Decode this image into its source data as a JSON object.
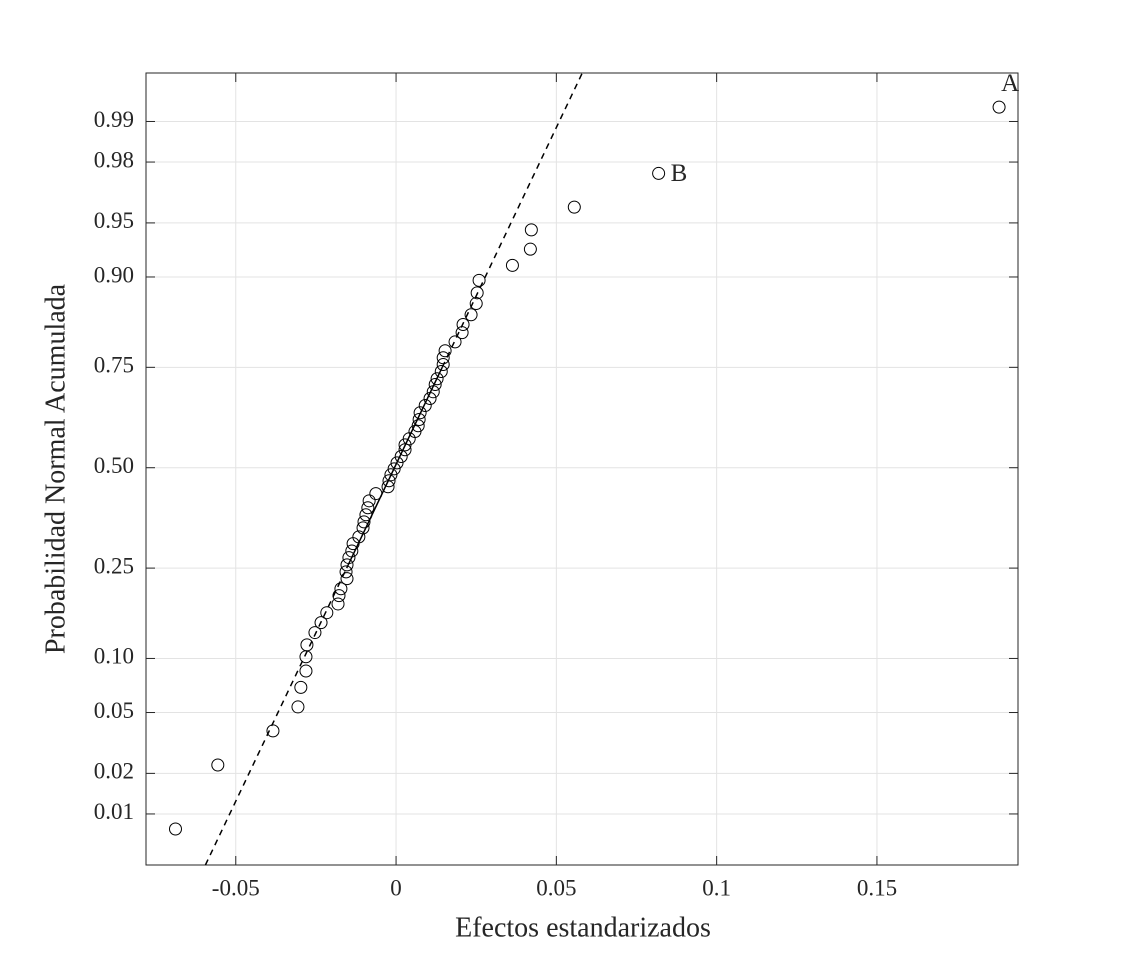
{
  "chart_data": {
    "type": "normal-probability",
    "x_label": "Efectos estandarizados",
    "y_label": "Probabilidad Normal Acumulada",
    "yscale": "probit",
    "grid": true,
    "color": "#000000",
    "xlim": [
      -0.078,
      0.194
    ],
    "ylim": [
      0.0038,
      0.996
    ],
    "xticks": [
      -0.05,
      0,
      0.05,
      0.1,
      0.15
    ],
    "yticks": [
      0.01,
      0.02,
      0.05,
      {
        "value": 0.1,
        "label": "0.10"
      },
      0.25,
      {
        "value": 0.5,
        "label": "0.50"
      },
      0.75,
      {
        "value": 0.9,
        "label": "0.90"
      },
      0.95,
      0.98,
      0.99
    ],
    "x": [
      -0.0688,
      -0.0556,
      -0.0384,
      -0.0306,
      -0.0297,
      -0.0281,
      -0.0281,
      -0.0278,
      -0.0253,
      -0.0234,
      -0.0216,
      -0.0181,
      -0.0178,
      -0.0172,
      -0.0153,
      -0.0156,
      -0.0153,
      -0.0147,
      -0.0138,
      -0.0134,
      -0.0116,
      -0.0103,
      -0.01,
      -0.0094,
      -0.0088,
      -0.0084,
      -0.0063,
      -0.0025,
      -0.0022,
      -0.0016,
      -0.0006,
      0.0003,
      0.0016,
      0.0028,
      0.0028,
      0.0041,
      0.0059,
      0.0069,
      0.0072,
      0.0075,
      0.0091,
      0.0106,
      0.0116,
      0.0122,
      0.0128,
      0.0141,
      0.0147,
      0.0147,
      0.0153,
      0.0184,
      0.0206,
      0.0209,
      0.0234,
      0.025,
      0.0253,
      0.0259,
      0.0363,
      0.0419,
      0.0422,
      0.0556,
      0.0819,
      0.1881
    ],
    "values": [
      0.0076,
      0.0229,
      0.0385,
      0.054,
      0.07,
      0.086,
      0.102,
      0.117,
      0.134,
      0.149,
      0.165,
      0.18,
      0.195,
      0.208,
      0.228,
      0.242,
      0.257,
      0.273,
      0.288,
      0.305,
      0.321,
      0.343,
      0.358,
      0.376,
      0.394,
      0.412,
      0.431,
      0.449,
      0.465,
      0.481,
      0.497,
      0.513,
      0.53,
      0.548,
      0.561,
      0.577,
      0.596,
      0.611,
      0.627,
      0.644,
      0.662,
      0.679,
      0.695,
      0.712,
      0.725,
      0.741,
      0.756,
      0.77,
      0.784,
      0.801,
      0.818,
      0.832,
      0.848,
      0.865,
      0.88,
      0.896,
      0.913,
      0.929,
      0.945,
      0.96,
      0.976,
      0.9923
    ],
    "fit_line": {
      "x": [
        -0.0154,
        0.0144
      ],
      "y": [
        0.25,
        0.75
      ]
    },
    "annotations": [
      {
        "text": "A",
        "point": 61
      },
      {
        "text": "B",
        "point": 60
      }
    ]
  }
}
